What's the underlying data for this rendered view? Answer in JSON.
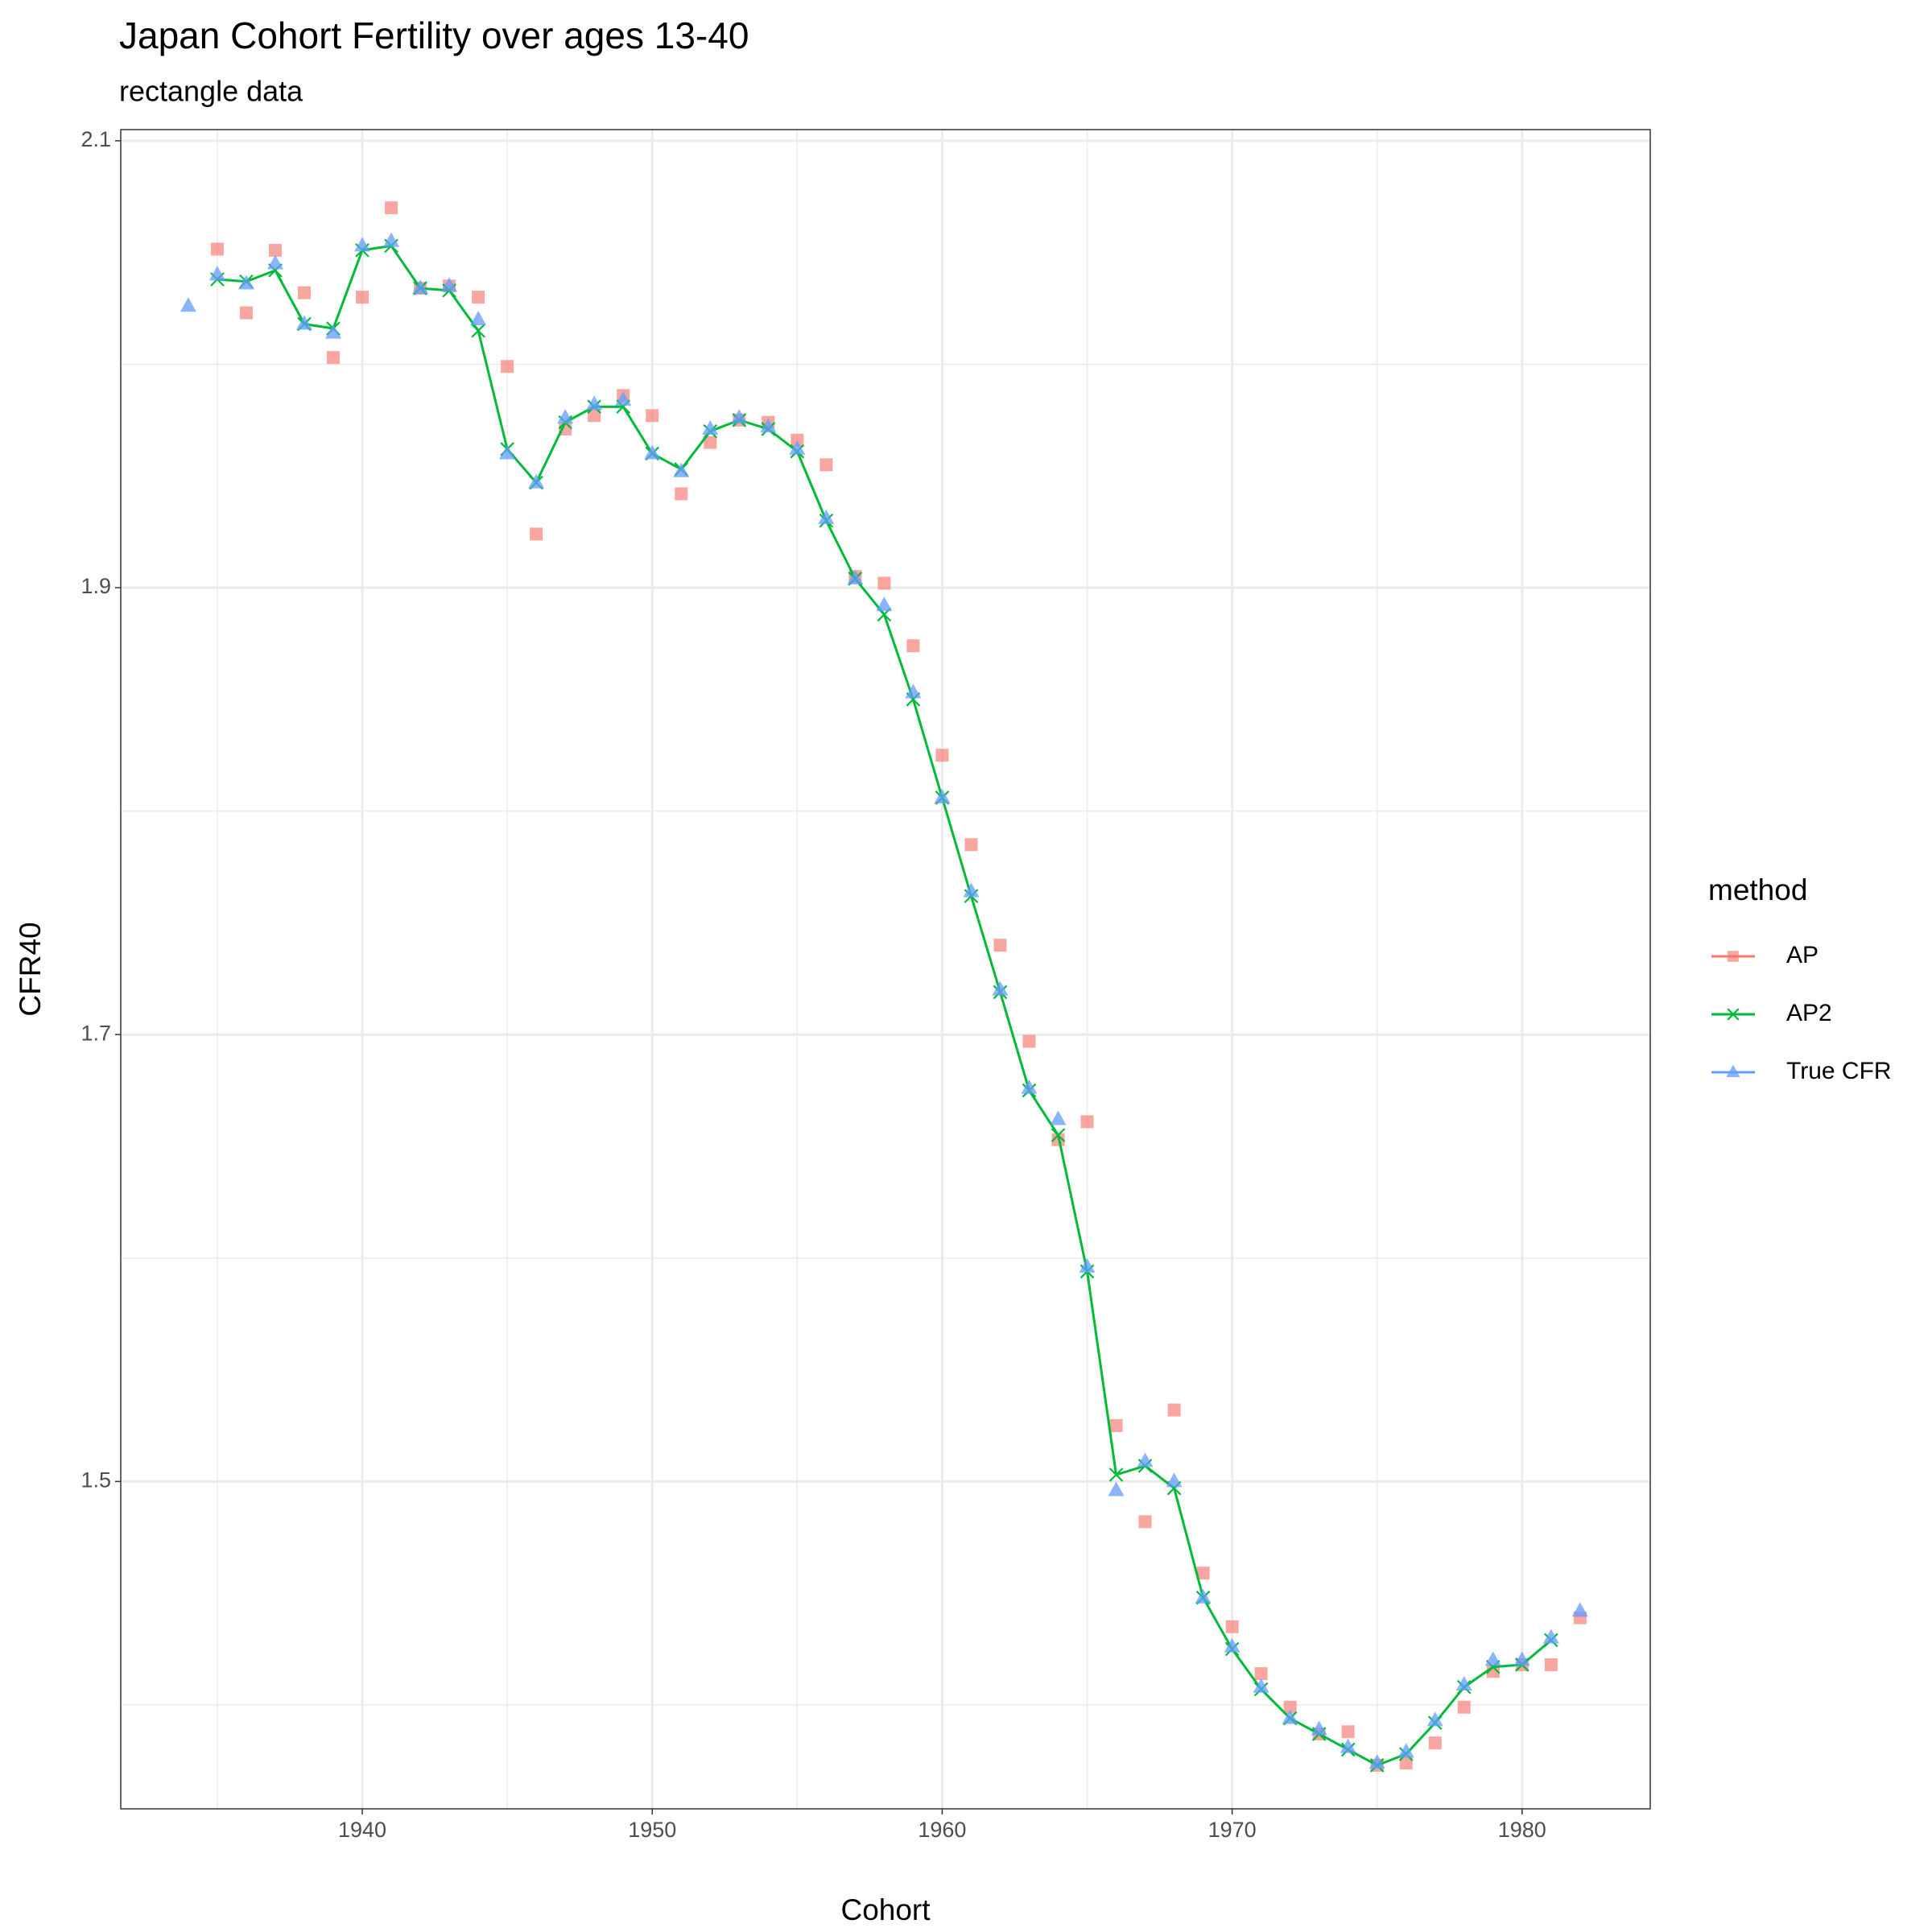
{
  "chart_data": {
    "type": "scatter-line",
    "title": "Japan Cohort Fertility over ages 13-40",
    "subtitle": "rectangle data",
    "x_label": "Cohort",
    "y_label": "CFR40",
    "legend_title": "method",
    "legend_position": "right",
    "grid": true,
    "minor_grid": true,
    "xlim": [
      1931.67,
      1984.42
    ],
    "ylim": [
      1.3535,
      2.105
    ],
    "xticks": [
      1940,
      1950,
      1960,
      1970,
      1980
    ],
    "yticks": [
      1.5,
      1.7,
      1.9,
      2.1
    ],
    "series": [
      {
        "name": "AP",
        "color": "#F8766D",
        "marker": "square",
        "line": false,
        "x": [
          1935,
          1936,
          1937,
          1938,
          1939,
          1940,
          1941,
          1942,
          1943,
          1944,
          1945,
          1946,
          1947,
          1948,
          1949,
          1950,
          1951,
          1952,
          1953,
          1954,
          1955,
          1956,
          1957,
          1958,
          1959,
          1960,
          1961,
          1962,
          1963,
          1964,
          1965,
          1966,
          1967,
          1968,
          1969,
          1970,
          1971,
          1972,
          1973,
          1974,
          1975,
          1976,
          1977,
          1978,
          1979,
          1980,
          1981,
          1982
        ],
        "values": [
          2.0515,
          2.023,
          2.051,
          2.032,
          2.003,
          2.03,
          2.07,
          2.034,
          2.035,
          2.03,
          1.999,
          1.924,
          1.971,
          1.977,
          1.986,
          1.977,
          1.942,
          1.965,
          1.975,
          1.974,
          1.966,
          1.955,
          1.905,
          1.902,
          1.874,
          1.825,
          1.785,
          1.74,
          1.697,
          1.653,
          1.661,
          1.525,
          1.482,
          1.532,
          1.459,
          1.435,
          1.414,
          1.399,
          1.387,
          1.388,
          1.373,
          1.374,
          1.383,
          1.399,
          1.415,
          1.418,
          1.418,
          1.439
        ]
      },
      {
        "name": "AP2",
        "color": "#00BA38",
        "marker": "x",
        "line": true,
        "x": [
          1935,
          1936,
          1937,
          1938,
          1939,
          1940,
          1941,
          1942,
          1943,
          1944,
          1945,
          1946,
          1947,
          1948,
          1949,
          1950,
          1951,
          1952,
          1953,
          1954,
          1955,
          1956,
          1957,
          1958,
          1959,
          1960,
          1961,
          1962,
          1963,
          1964,
          1965,
          1966,
          1967,
          1968,
          1969,
          1970,
          1971,
          1972,
          1973,
          1974,
          1975,
          1976,
          1977,
          1978,
          1979,
          1980,
          1981
        ],
        "values": [
          2.038,
          2.037,
          2.042,
          2.018,
          2.016,
          2.051,
          2.053,
          2.034,
          2.033,
          2.015,
          1.962,
          1.947,
          1.974,
          1.981,
          1.981,
          1.96,
          1.953,
          1.97,
          1.975,
          1.971,
          1.961,
          1.93,
          1.904,
          1.888,
          1.85,
          1.806,
          1.762,
          1.719,
          1.675,
          1.655,
          1.594,
          1.503,
          1.507,
          1.497,
          1.448,
          1.425,
          1.407,
          1.394,
          1.387,
          1.38,
          1.373,
          1.378,
          1.392,
          1.408,
          1.417,
          1.418,
          1.429
        ]
      },
      {
        "name": "True CFR",
        "color": "#619CFF",
        "marker": "triangle",
        "line": false,
        "x": [
          1934,
          1935,
          1936,
          1937,
          1938,
          1939,
          1940,
          1941,
          1942,
          1943,
          1944,
          1945,
          1946,
          1947,
          1948,
          1949,
          1950,
          1951,
          1952,
          1953,
          1954,
          1955,
          1956,
          1957,
          1958,
          1959,
          1960,
          1961,
          1962,
          1963,
          1964,
          1965,
          1966,
          1967,
          1968,
          1969,
          1970,
          1971,
          1972,
          1973,
          1974,
          1975,
          1976,
          1977,
          1978,
          1979,
          1980,
          1981,
          1982
        ],
        "values": [
          2.026,
          2.04,
          2.036,
          2.045,
          2.018,
          2.014,
          2.053,
          2.055,
          2.034,
          2.035,
          2.02,
          1.96,
          1.947,
          1.976,
          1.982,
          1.984,
          1.96,
          1.952,
          1.971,
          1.976,
          1.972,
          1.962,
          1.931,
          1.904,
          1.892,
          1.853,
          1.806,
          1.764,
          1.72,
          1.676,
          1.662,
          1.596,
          1.496,
          1.509,
          1.5,
          1.448,
          1.426,
          1.408,
          1.394,
          1.389,
          1.381,
          1.374,
          1.379,
          1.393,
          1.409,
          1.42,
          1.42,
          1.43,
          1.442
        ]
      }
    ]
  }
}
